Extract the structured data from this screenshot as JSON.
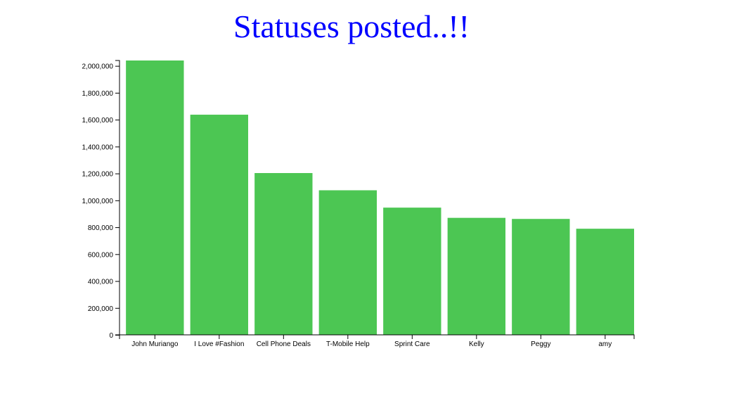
{
  "colors": {
    "title": "#0000ff",
    "bar": "#4cc653",
    "axis": "#000000"
  },
  "chart_data": {
    "type": "bar",
    "title": "Statuses posted..!!",
    "xlabel": "",
    "ylabel": "",
    "categories": [
      "John Muriango",
      "I Love #Fashion",
      "Cell Phone Deals",
      "T-Mobile Help",
      "Sprint Care",
      "Kelly",
      "Peggy",
      "amy"
    ],
    "values": [
      2040000,
      1637000,
      1203000,
      1075000,
      946000,
      870000,
      862000,
      789000
    ],
    "ylim": [
      0,
      2040000
    ],
    "yticks": [
      0,
      200000,
      400000,
      600000,
      800000,
      1000000,
      1200000,
      1400000,
      1600000,
      1800000,
      2000000
    ],
    "ytick_labels": [
      "0",
      "200,000",
      "400,000",
      "600,000",
      "800,000",
      "1,000,000",
      "1,200,000",
      "1,400,000",
      "1,600,000",
      "1,800,000",
      "2,000,000"
    ],
    "grid": false,
    "legend": "none"
  }
}
